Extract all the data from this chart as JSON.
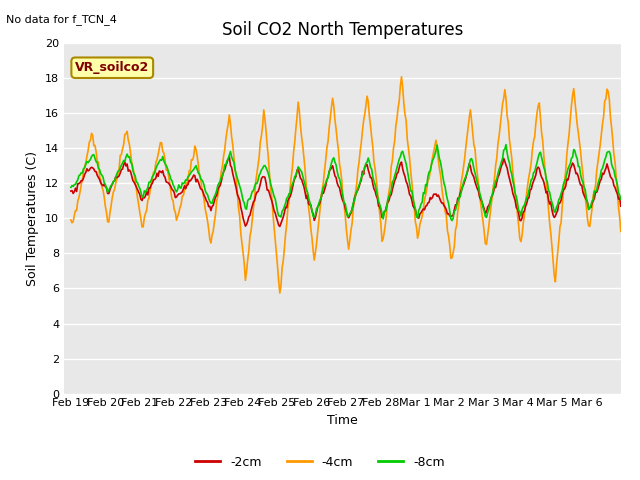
{
  "title": "Soil CO2 North Temperatures",
  "no_data_label": "No data for f_TCN_4",
  "legend_label": "VR_soilco2",
  "ylabel": "Soil Temperatures (C)",
  "xlabel": "Time",
  "ylim": [
    0,
    20
  ],
  "yticks": [
    0,
    2,
    4,
    6,
    8,
    10,
    12,
    14,
    16,
    18,
    20
  ],
  "xtick_labels": [
    "Feb 19",
    "Feb 20",
    "Feb 21",
    "Feb 22",
    "Feb 23",
    "Feb 24",
    "Feb 25",
    "Feb 26",
    "Feb 27",
    "Feb 28",
    "Mar 1",
    "Mar 2",
    "Mar 3",
    "Mar 4",
    "Mar 5",
    "Mar 6"
  ],
  "line_colors": {
    "m2cm": "#cc0000",
    "m4cm": "#ff9900",
    "m8cm": "#00cc00"
  },
  "line_widths": {
    "m2cm": 1.2,
    "m4cm": 1.2,
    "m8cm": 1.2
  },
  "legend_entries": [
    "-2cm",
    "-4cm",
    "-8cm"
  ],
  "bg_color": "#e8e8e8",
  "fig_bg": "#ffffff",
  "title_fontsize": 12,
  "label_fontsize": 9,
  "tick_fontsize": 8,
  "grid_color": "#ffffff",
  "num_points": 480
}
